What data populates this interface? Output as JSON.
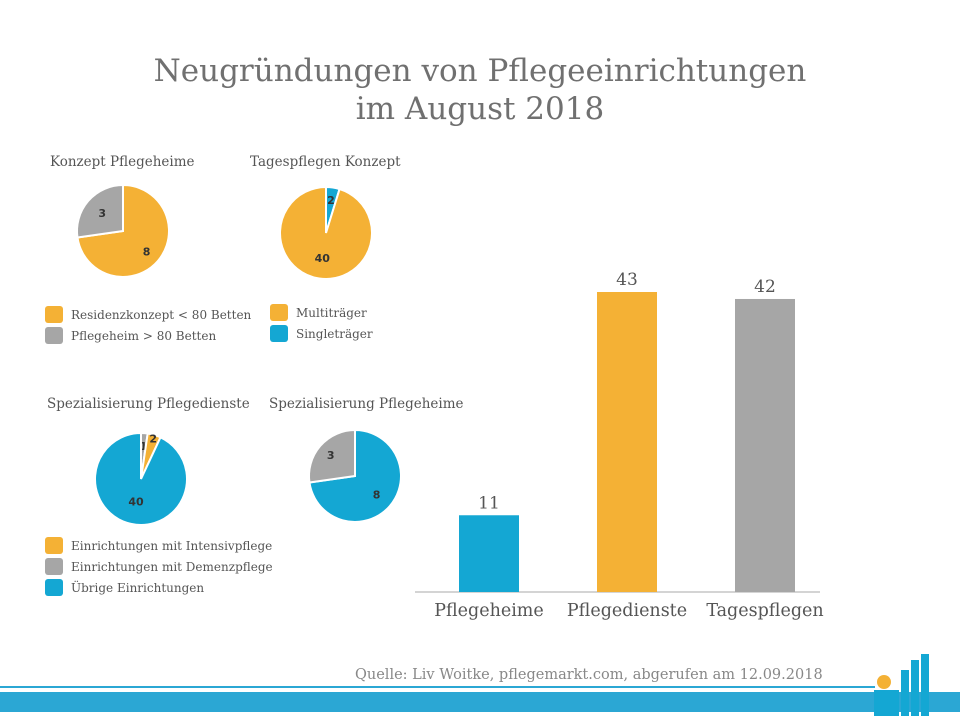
{
  "title_line1": "Neugründungen von Pflegeeinrichtungen",
  "title_line2": "im August 2018",
  "colors": {
    "orange": "#f4b135",
    "gray": "#a6a6a6",
    "blue": "#14a7d3"
  },
  "chart_data": [
    {
      "type": "pie",
      "title": "Konzept Pflegeheime",
      "slices": [
        {
          "label": "Residenzkonzept < 80 Betten",
          "value": 8,
          "color": "#f4b135"
        },
        {
          "label": "Pflegeheim > 80 Betten",
          "value": 3,
          "color": "#a6a6a6"
        }
      ]
    },
    {
      "type": "pie",
      "title": "Tagespflegen Konzept",
      "slices": [
        {
          "label": "Multiträger",
          "value": 40,
          "color": "#f4b135"
        },
        {
          "label": "Singleträger",
          "value": 2,
          "color": "#14a7d3"
        }
      ]
    },
    {
      "type": "pie",
      "title": "Spezialisierung Pflegedienste",
      "slices": [
        {
          "label": "Einrichtungen mit Intensivpflege",
          "value": 2,
          "color": "#f4b135"
        },
        {
          "label": "Einrichtungen mit Demenzpflege",
          "value": 1,
          "color": "#a6a6a6"
        },
        {
          "label": "Übrige Einrichtungen",
          "value": 40,
          "color": "#14a7d3"
        }
      ]
    },
    {
      "type": "pie",
      "title": "Spezialisierung Pflegeheime",
      "slices": [
        {
          "label": "",
          "value": 8,
          "color": "#14a7d3"
        },
        {
          "label": "",
          "value": 3,
          "color": "#a6a6a6"
        }
      ]
    },
    {
      "type": "bar",
      "categories": [
        "Pflegeheime",
        "Pflegedienste",
        "Tagespflegen"
      ],
      "values": [
        11,
        43,
        42
      ],
      "colors": [
        "#14a7d3",
        "#f4b135",
        "#a6a6a6"
      ],
      "ylim": [
        0,
        43
      ],
      "grid": false
    }
  ],
  "legends": {
    "konzept": [
      "Residenzkonzept  <  80  Betten",
      "Pflegeheim  >  80  Betten"
    ],
    "tages": [
      "Multiträger",
      "Singleträger"
    ],
    "spez": [
      "Einrichtungen  mit  Intensivpflege",
      "Einrichtungen  mit  Demenzpflege",
      "Übrige Einrichtungen"
    ]
  },
  "source": "Quelle: Liv Woitke, pflegemarkt.com, abgerufen am 12.09.2018"
}
